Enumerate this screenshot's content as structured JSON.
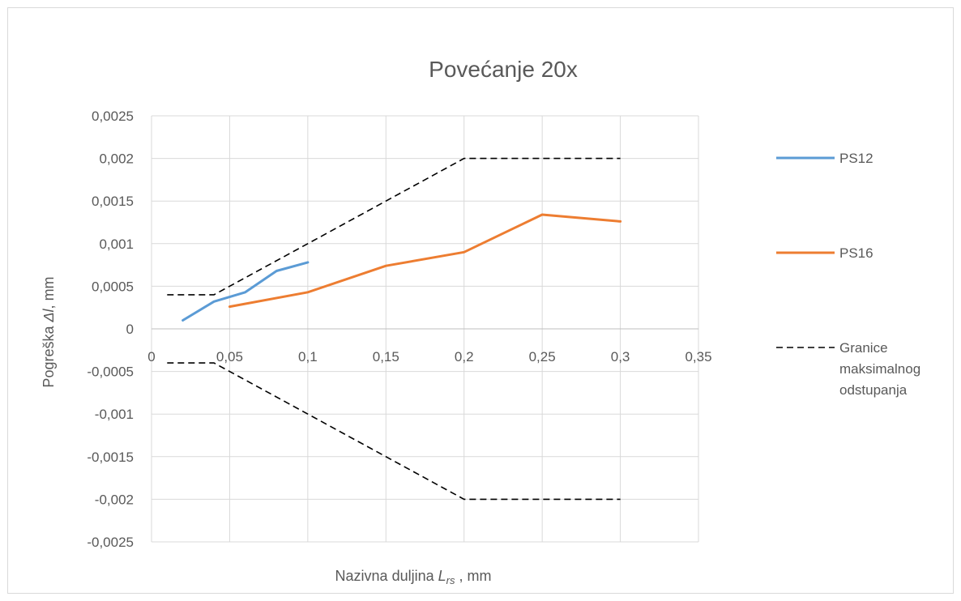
{
  "chart_data": {
    "type": "line",
    "title": "Povećanje 20x",
    "xlabel": {
      "prefix": "Nazivna duljina ",
      "symbol": "L",
      "sub": "rs",
      "suffix": " , mm"
    },
    "ylabel": {
      "prefix": "Pogreška ",
      "symbol": "Δl",
      "suffix": ", mm"
    },
    "xlim": [
      0,
      0.35
    ],
    "ylim": [
      -0.0025,
      0.0025
    ],
    "x_ticks": [
      0,
      0.05,
      0.1,
      0.15,
      0.2,
      0.25,
      0.3,
      0.35
    ],
    "x_tick_labels": [
      "0",
      "0,05",
      "0,1",
      "0,15",
      "0,2",
      "0,25",
      "0,3",
      "0,35"
    ],
    "y_ticks": [
      0.0025,
      0.002,
      0.0015,
      0.001,
      0.0005,
      0,
      -0.0005,
      -0.001,
      -0.0015,
      -0.002,
      -0.0025
    ],
    "y_tick_labels": [
      "0,0025",
      "0,002",
      "0,0015",
      "0,001",
      "0,0005",
      "0",
      "-0,0005",
      "-0,001",
      "-0,0015",
      "-0,002",
      "-0,0025"
    ],
    "grid": true,
    "legend_position": "right",
    "series": [
      {
        "name": "PS12",
        "color": "#5b9bd5",
        "style": "solid",
        "x": [
          0.02,
          0.04,
          0.06,
          0.08,
          0.1
        ],
        "y": [
          0.0001,
          0.00032,
          0.00043,
          0.00068,
          0.00078
        ]
      },
      {
        "name": "PS16",
        "color": "#ed7d31",
        "style": "solid",
        "x": [
          0.05,
          0.1,
          0.15,
          0.2,
          0.25,
          0.3
        ],
        "y": [
          0.00026,
          0.00043,
          0.00074,
          0.0009,
          0.00134,
          0.00126
        ]
      },
      {
        "name": "Granice maksimalnog odstupanja",
        "legend_lines": [
          "Granice",
          "maksimalnog",
          "odstupanja"
        ],
        "color": "#000000",
        "style": "dashed",
        "x": [
          0.01,
          0.04,
          0.1,
          0.2,
          0.3
        ],
        "y": [
          0.0004,
          0.0004,
          0.001,
          0.002,
          0.002
        ]
      },
      {
        "name": "",
        "color": "#000000",
        "style": "dashed",
        "x": [
          0.01,
          0.04,
          0.1,
          0.2,
          0.3
        ],
        "y": [
          -0.0004,
          -0.0004,
          -0.001,
          -0.002,
          -0.002
        ]
      }
    ]
  }
}
